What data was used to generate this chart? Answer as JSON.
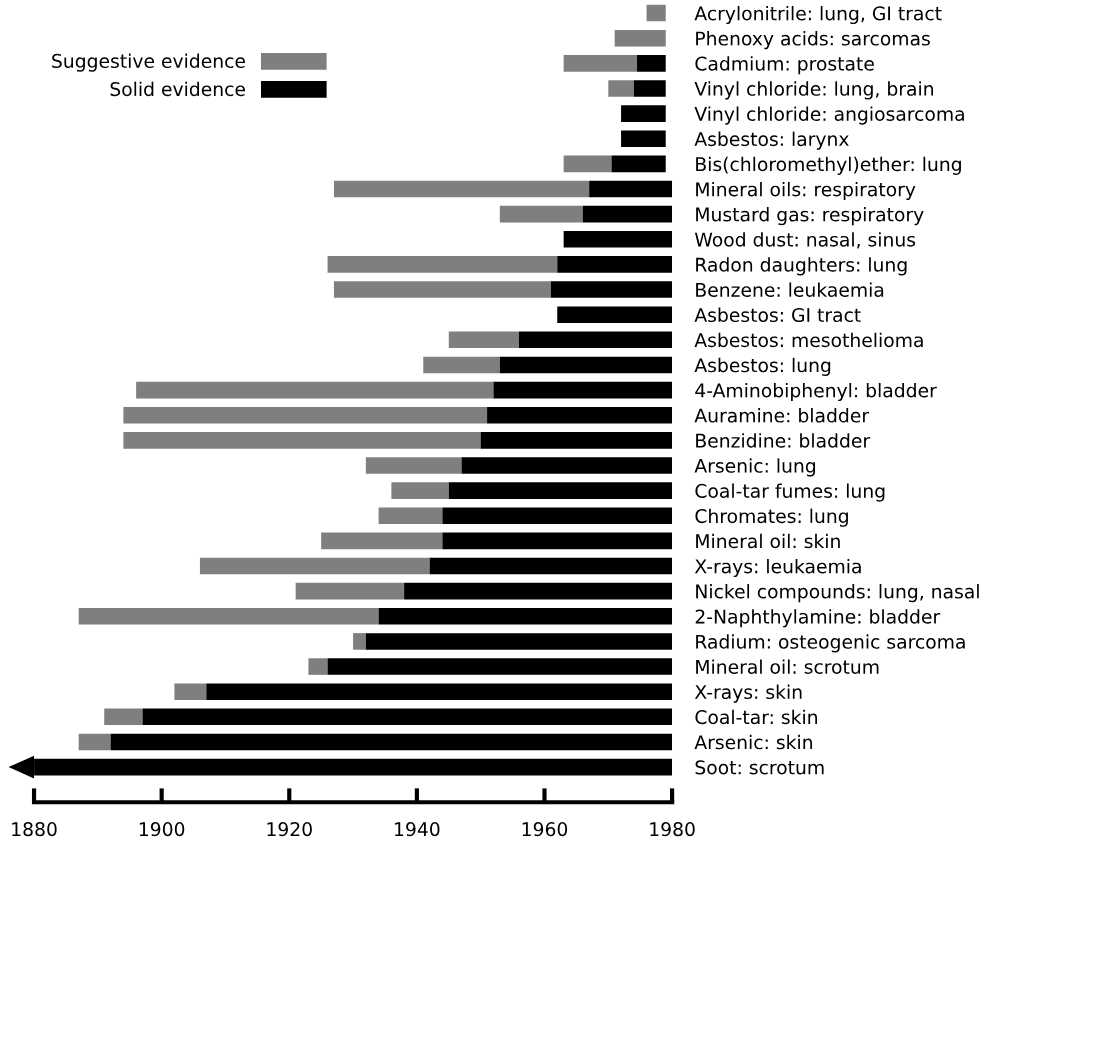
{
  "chart_data": {
    "type": "bar",
    "orientation": "horizontal",
    "categories": [
      "Acrylonitrile: lung, GI tract",
      "Phenoxy acids: sarcomas",
      "Cadmium: prostate",
      "Vinyl chloride: lung, brain",
      "Vinyl chloride: angiosarcoma",
      "Asbestos: larynx",
      "Bis(chloromethyl)ether: lung",
      "Mineral oils: respiratory",
      "Mustard gas: respiratory",
      "Wood dust: nasal, sinus",
      "Radon daughters: lung",
      "Benzene: leukaemia",
      "Asbestos: GI tract",
      "Asbestos: mesothelioma",
      "Asbestos: lung",
      "4-Aminobiphenyl: bladder",
      "Auramine: bladder",
      "Benzidine: bladder",
      "Arsenic: lung",
      "Coal-tar fumes: lung",
      "Chromates: lung",
      "Mineral oil: skin",
      "X-rays: leukaemia",
      "Nickel compounds: lung, nasal",
      "2-Naphthylamine: bladder",
      "Radium: osteogenic sarcoma",
      "Mineral oil: scrotum",
      "X-rays: skin",
      "Coal-tar: skin",
      "Arsenic: skin",
      "Soot: scrotum"
    ],
    "series": [
      {
        "name": "Suggestive evidence",
        "color": "#7f7f7f",
        "base": [
          1976,
          1971,
          1963,
          1970,
          null,
          null,
          1963,
          1927,
          1953,
          null,
          1926,
          1927,
          null,
          1945,
          1941,
          1896,
          1894,
          1894,
          1932,
          1936,
          1934,
          1925,
          1906,
          1921,
          1887,
          1930,
          1923,
          1902,
          1891,
          1887,
          null
        ],
        "values": [
          3,
          8,
          11.5,
          4,
          null,
          null,
          7.5,
          40,
          13,
          null,
          36,
          34,
          null,
          11,
          12,
          56,
          57,
          56,
          15,
          9,
          10,
          19,
          36,
          17,
          47,
          2,
          3,
          5,
          6,
          5,
          null
        ]
      },
      {
        "name": "Solid evidence",
        "color": "#000000",
        "base": [
          null,
          null,
          1974.5,
          1974,
          1972,
          1972,
          1970.5,
          1967,
          1966,
          1963,
          1962,
          1961,
          1962,
          1956,
          1953,
          1952,
          1951,
          1950,
          1947,
          1945,
          1944,
          1944,
          1942,
          1938,
          1934,
          1932,
          1926,
          1907,
          1897,
          1892,
          1880
        ],
        "values": [
          null,
          null,
          4.5,
          5,
          7,
          7,
          8.5,
          13,
          14,
          17,
          18,
          19,
          18,
          24,
          27,
          28,
          29,
          30,
          33,
          35,
          36,
          36,
          38,
          42,
          46,
          48,
          54,
          73,
          83,
          88,
          100
        ]
      }
    ],
    "xlim": [
      1880,
      1980
    ],
    "xticks": [
      1880,
      1900,
      1920,
      1940,
      1960,
      1980
    ],
    "grid": false,
    "legend": "top left"
  }
}
